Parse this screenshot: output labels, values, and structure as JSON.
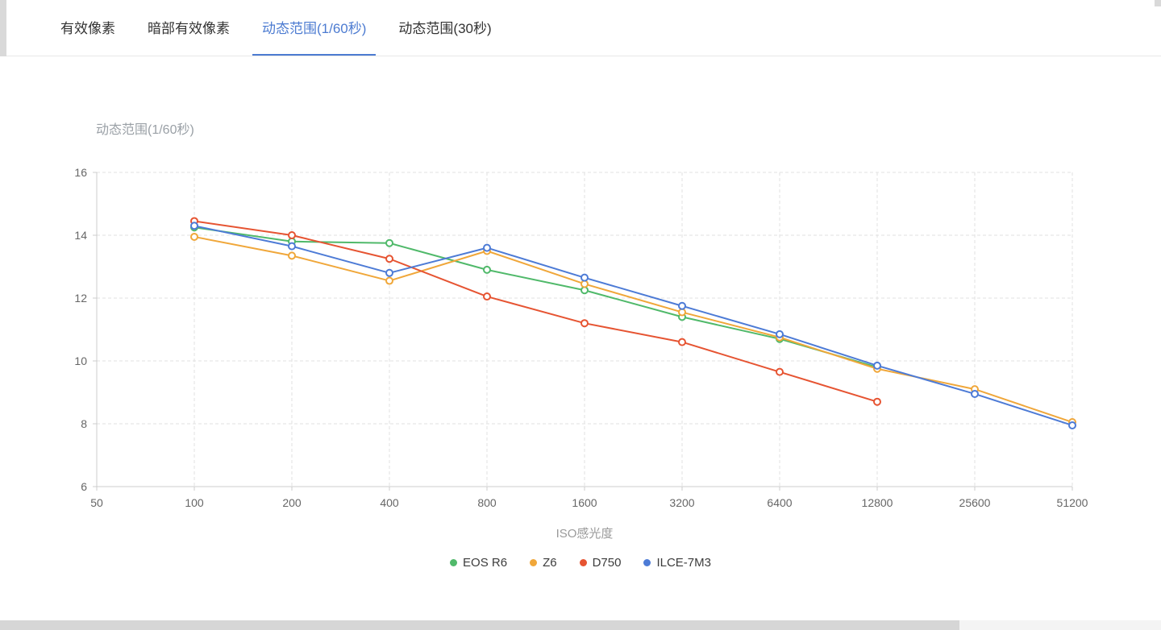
{
  "tabs": [
    {
      "label": "有效像素",
      "active": false
    },
    {
      "label": "暗部有效像素",
      "active": false
    },
    {
      "label": "动态范围(1/60秒)",
      "active": true
    },
    {
      "label": "动态范围(30秒)",
      "active": false
    }
  ],
  "active_tab_color": "#4c7bd1",
  "chart_data": {
    "type": "line",
    "title": "动态范围(1/60秒)",
    "xlabel": "ISO感光度",
    "ylabel": "动态范围(1/60秒)",
    "categories": [
      "50",
      "100",
      "200",
      "400",
      "800",
      "1600",
      "3200",
      "6400",
      "12800",
      "25600",
      "51200"
    ],
    "ylim": [
      6,
      16
    ],
    "yticks": [
      6,
      8,
      10,
      12,
      14,
      16
    ],
    "grid": "dashed",
    "legend_position": "bottom",
    "marker_style": "hollow-circle",
    "series": [
      {
        "name": "EOS R6",
        "color": "#50b96a",
        "values": [
          null,
          14.25,
          13.8,
          13.75,
          12.9,
          12.25,
          11.4,
          10.7,
          9.8,
          null,
          null
        ]
      },
      {
        "name": "Z6",
        "color": "#f0a73a",
        "values": [
          null,
          13.95,
          13.35,
          12.55,
          13.5,
          12.45,
          11.55,
          10.75,
          9.75,
          9.1,
          8.05
        ]
      },
      {
        "name": "D750",
        "color": "#e65432",
        "values": [
          null,
          14.45,
          14.0,
          13.25,
          12.05,
          11.2,
          10.6,
          9.65,
          8.7,
          null,
          null
        ]
      },
      {
        "name": "ILCE-7M3",
        "color": "#4d7bd6",
        "values": [
          null,
          14.3,
          13.65,
          12.8,
          13.6,
          12.65,
          11.75,
          10.85,
          9.85,
          8.95,
          7.95
        ]
      }
    ]
  }
}
